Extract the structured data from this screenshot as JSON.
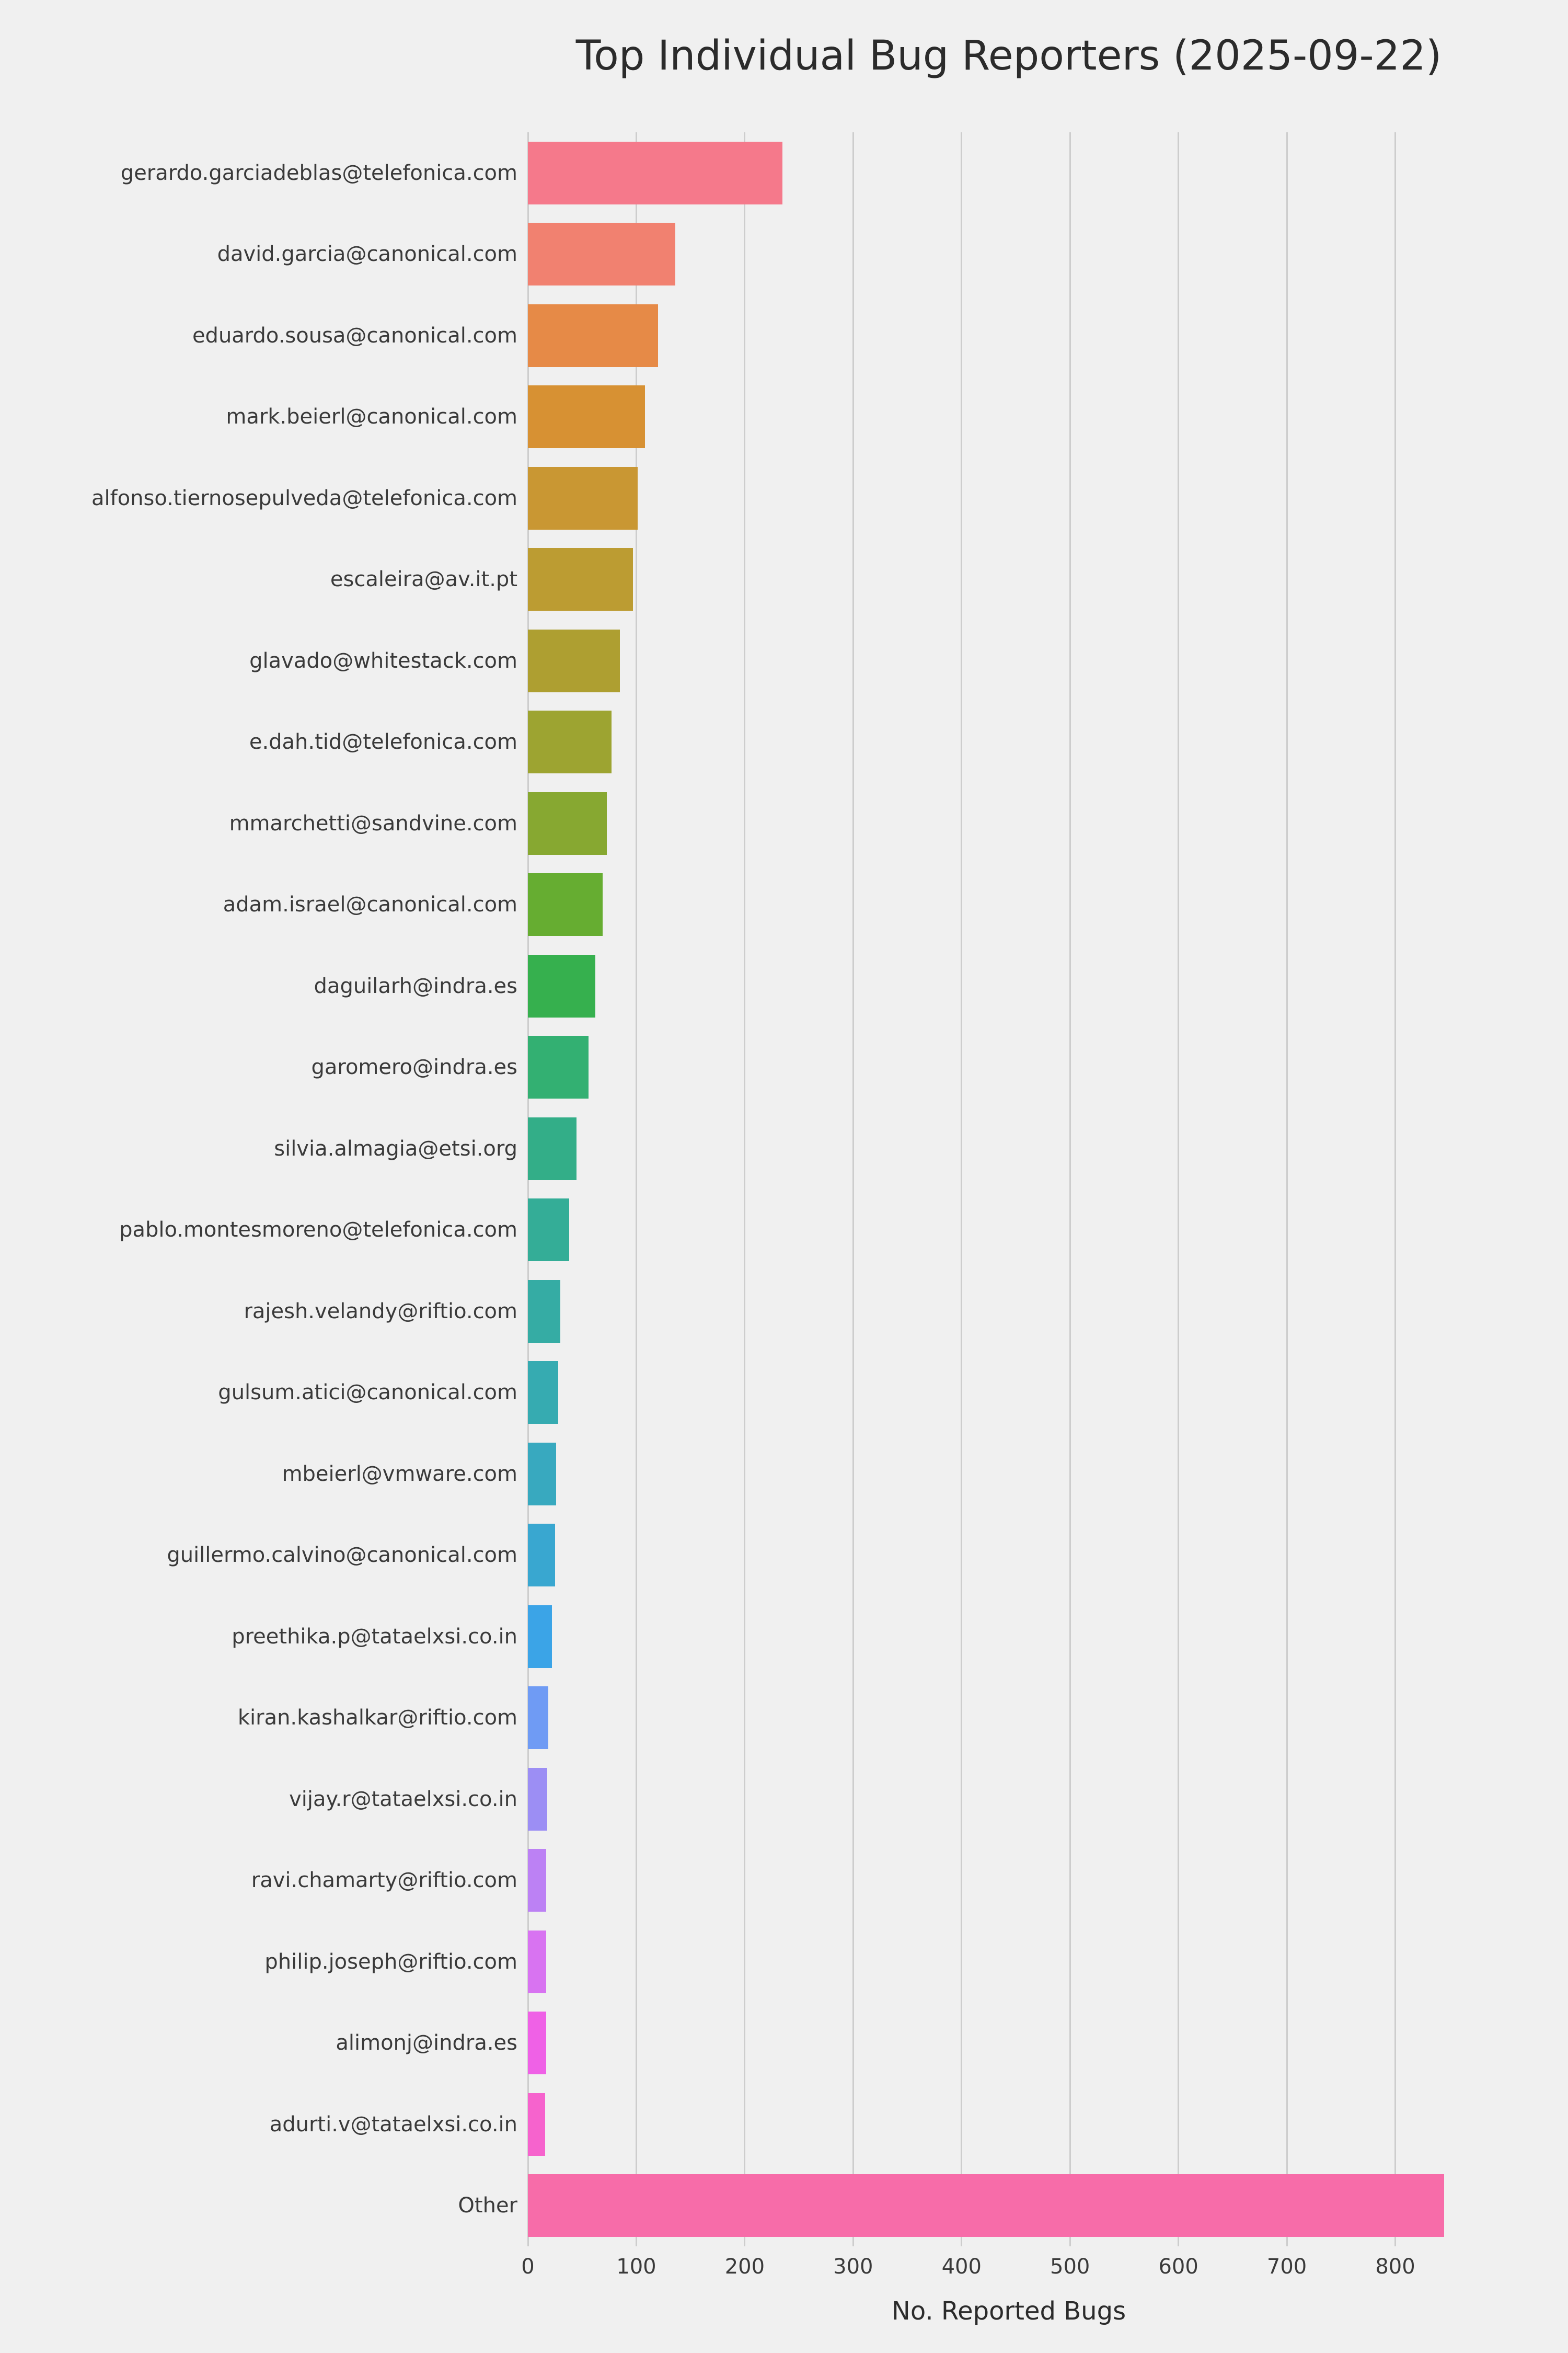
{
  "style": {
    "background": "#f0f0f0",
    "grid_color": "#cdcdcd",
    "text_color": "#3a3a3a"
  },
  "chart_data": {
    "type": "bar",
    "orientation": "horizontal",
    "title": "Top Individual Bug Reporters (2025-09-22)",
    "xlabel": "No. Reported Bugs",
    "ylabel": "",
    "grid": true,
    "legend": false,
    "xlim": [
      0,
      887
    ],
    "xticks": [
      0,
      100,
      200,
      300,
      400,
      500,
      600,
      700,
      800
    ],
    "categories": [
      "gerardo.garciadeblas@telefonica.com",
      "david.garcia@canonical.com",
      "eduardo.sousa@canonical.com",
      "mark.beierl@canonical.com",
      "alfonso.tiernosepulveda@telefonica.com",
      "escaleira@av.it.pt",
      "glavado@whitestack.com",
      "e.dah.tid@telefonica.com",
      "mmarchetti@sandvine.com",
      "adam.israel@canonical.com",
      "daguilarh@indra.es",
      "garomero@indra.es",
      "silvia.almagia@etsi.org",
      "pablo.montesmoreno@telefonica.com",
      "rajesh.velandy@riftio.com",
      "gulsum.atici@canonical.com",
      "mbeierl@vmware.com",
      "guillermo.calvino@canonical.com",
      "preethika.p@tataelxsi.co.in",
      "kiran.kashalkar@riftio.com",
      "vijay.r@tataelxsi.co.in",
      "ravi.chamarty@riftio.com",
      "philip.joseph@riftio.com",
      "alimonj@indra.es",
      "adurti.v@tataelxsi.co.in",
      "Other"
    ],
    "values": [
      235,
      136,
      120,
      108,
      101,
      97,
      85,
      77,
      73,
      69,
      62,
      56,
      45,
      38,
      30,
      28,
      26,
      25,
      22,
      19,
      18,
      17,
      17,
      17,
      16,
      845
    ],
    "colors": [
      "#f5798b",
      "#f18170",
      "#e68a47",
      "#d79133",
      "#c99733",
      "#bc9c32",
      "#ae9f31",
      "#9da431",
      "#87a831",
      "#66ad31",
      "#36b04e",
      "#33b072",
      "#33ae88",
      "#34ad97",
      "#35aca4",
      "#36abb1",
      "#38a9bf",
      "#39a7d0",
      "#3ba4e7",
      "#6f9bf4",
      "#9c8ef4",
      "#bc81f4",
      "#d873f1",
      "#ef61e6",
      "#f663cd",
      "#f76ca9"
    ]
  }
}
